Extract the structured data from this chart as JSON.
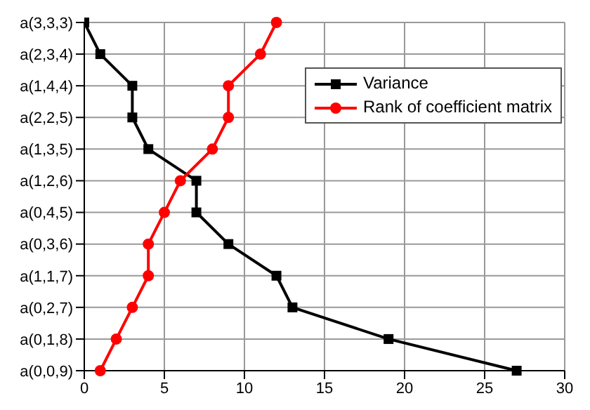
{
  "chart_data": {
    "type": "line",
    "orientation": "horizontal",
    "categories": [
      "a(3,3,3)",
      "a(2,3,4)",
      "a(1,4,4)",
      "a(2,2,5)",
      "a(1,3,5)",
      "a(1,2,6)",
      "a(0,4,5)",
      "a(0,3,6)",
      "a(1,1,7)",
      "a(0,2,7)",
      "a(0,1,8)",
      "a(0,0,9)"
    ],
    "series": [
      {
        "name": "Variance",
        "color": "#000000",
        "marker": "square",
        "values": [
          0,
          1,
          3,
          3,
          4,
          7,
          7,
          9,
          12,
          13,
          19,
          27
        ]
      },
      {
        "name": "Rank of coefficient matrix",
        "color": "#ff0000",
        "marker": "circle",
        "values": [
          12,
          11,
          9,
          9,
          8,
          6,
          5,
          4,
          4,
          3,
          2,
          1
        ]
      }
    ],
    "xlim": [
      0,
      30
    ],
    "xticks": [
      0,
      5,
      10,
      15,
      20,
      25,
      30
    ],
    "grid": true,
    "legend": "top right"
  }
}
